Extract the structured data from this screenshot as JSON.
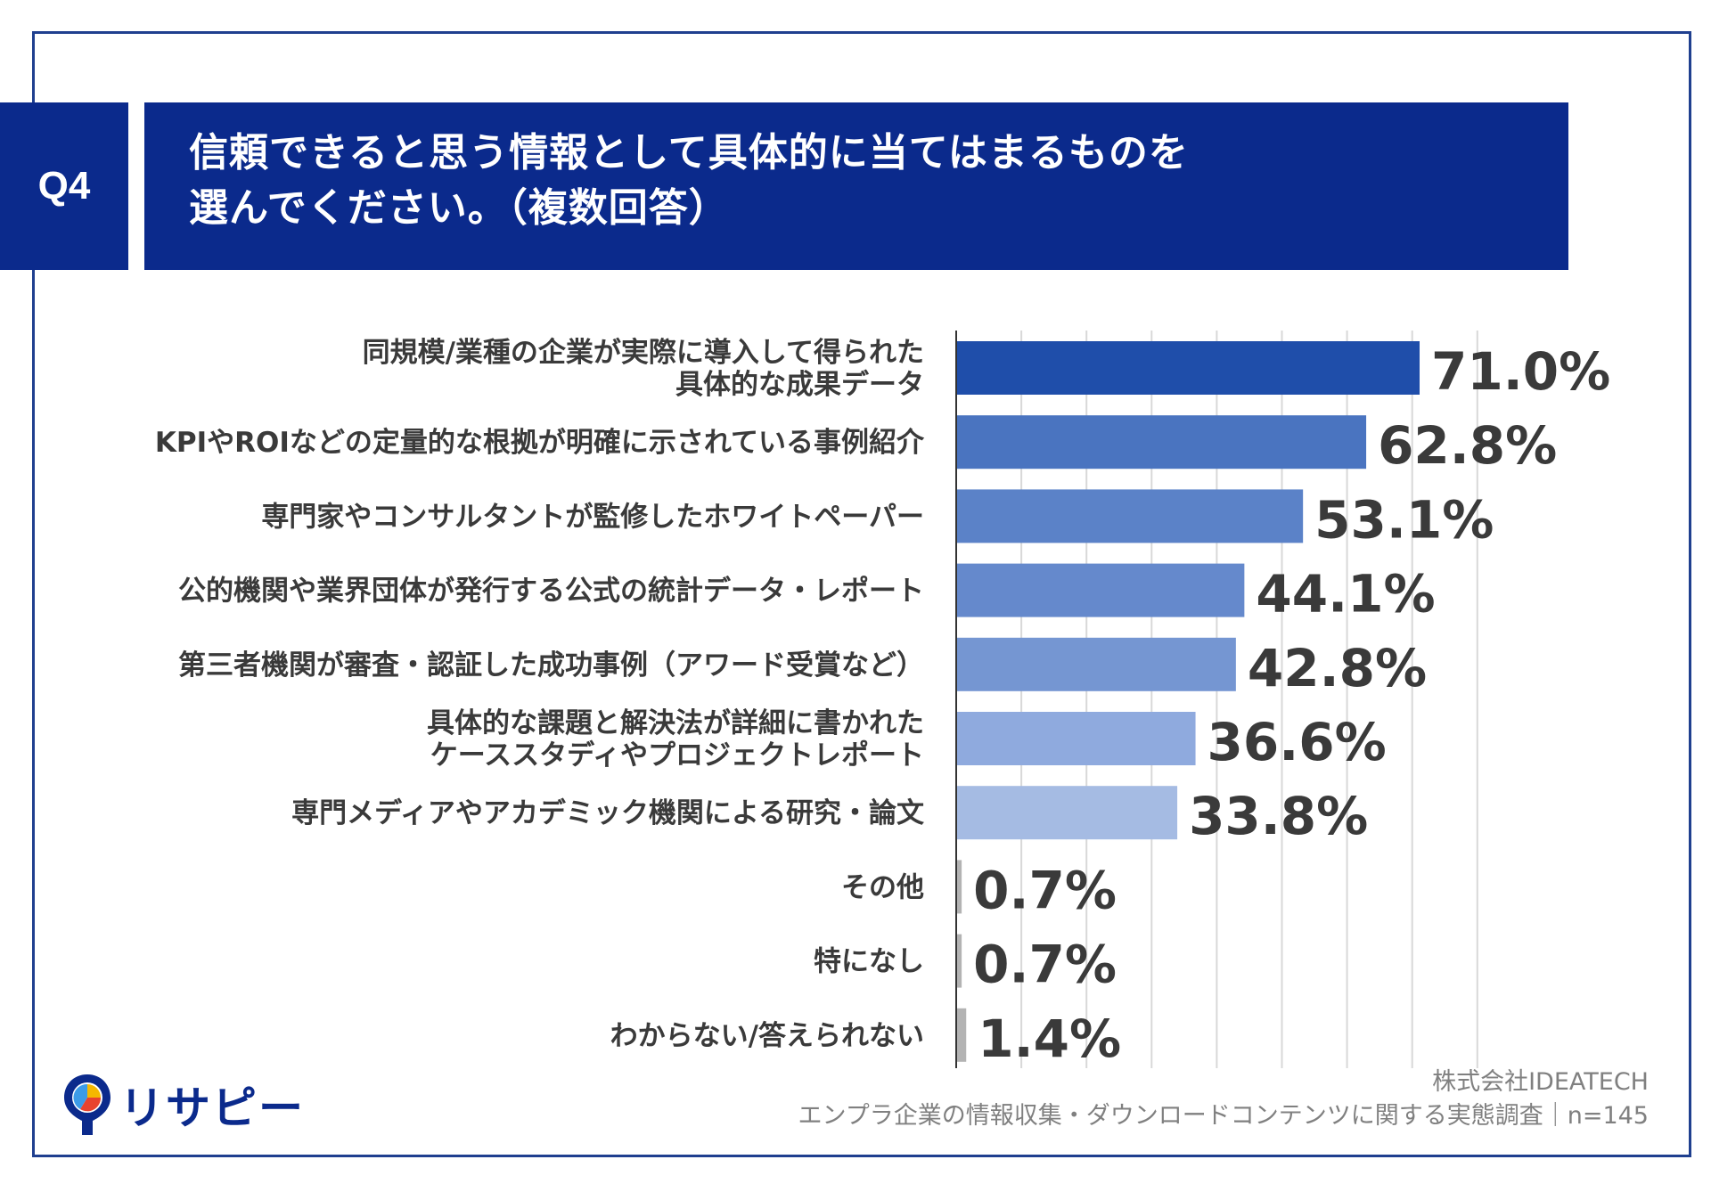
{
  "header": {
    "q_label": "Q4",
    "title_line1": "信頼できると思う情報として具体的に当てはまるものを",
    "title_line2": "選んでください。（複数回答）"
  },
  "chart_data": {
    "type": "bar",
    "orientation": "horizontal",
    "categories": [
      [
        "同規模/業種の企業が実際に導入して得られた",
        "具体的な成果データ"
      ],
      [
        "KPIやROIなどの定量的な根拠が明確に示されている事例紹介"
      ],
      [
        "専門家やコンサルタントが監修したホワイトペーパー"
      ],
      [
        "公的機関や業界団体が発行する公式の統計データ・レポート"
      ],
      [
        "第三者機関が審査・認証した成功事例（アワード受賞など）"
      ],
      [
        "具体的な課題と解決法が詳細に書かれた",
        "ケーススタディやプロジェクトレポート"
      ],
      [
        "専門メディアやアカデミック機関による研究・論文"
      ],
      [
        "その他"
      ],
      [
        "特になし"
      ],
      [
        "わからない/答えられない"
      ]
    ],
    "values": [
      71.0,
      62.8,
      53.1,
      44.1,
      42.8,
      36.6,
      33.8,
      0.7,
      0.7,
      1.4
    ],
    "value_labels": [
      "71.0%",
      "62.8%",
      "53.1%",
      "44.1%",
      "42.8%",
      "36.6%",
      "33.8%",
      "0.7%",
      "0.7%",
      "1.4%"
    ],
    "bar_colors": [
      "#1f4eaa",
      "#4a74c0",
      "#5b82c8",
      "#6589cc",
      "#7596d2",
      "#8faade",
      "#a5bbe3",
      "#b3b3b3",
      "#b3b3b3",
      "#b3b3b3"
    ],
    "xlim": [
      0,
      100
    ],
    "grid": true,
    "grid_color": "#d8d8d8",
    "unit": "%"
  },
  "footer": {
    "company": "株式会社IDEATECH",
    "survey": "エンプラ企業の情報収集・ダウンロードコンテンツに関する実態調査｜n=145"
  },
  "logo": {
    "text": "リサピー",
    "colors": [
      "#0b2a8c",
      "#f5b800",
      "#e8432e",
      "#3b9be8"
    ]
  }
}
